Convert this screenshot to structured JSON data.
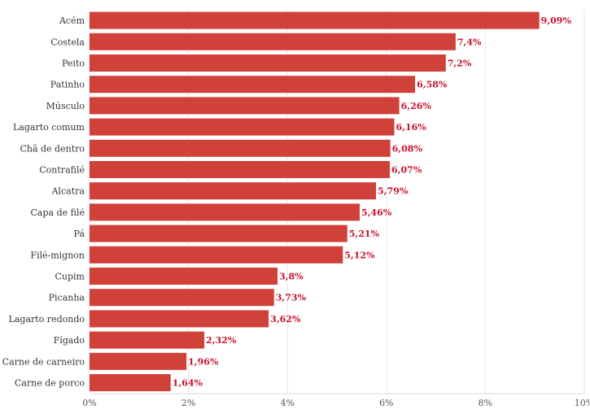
{
  "chart_data": {
    "type": "bar",
    "orientation": "horizontal",
    "categories": [
      "Acém",
      "Costela",
      "Peito",
      "Patinho",
      "Músculo",
      "Lagarto comum",
      "Chã de dentro",
      "Contrafilé",
      "Alcatra",
      "Capa de filé",
      "Pá",
      "Filé-mignon",
      "Cupim",
      "Picanha",
      "Lagarto redondo",
      "Fígado",
      "Carne de carneiro",
      "Carne de porco"
    ],
    "values": [
      9.09,
      7.4,
      7.2,
      6.58,
      6.26,
      6.16,
      6.08,
      6.07,
      5.79,
      5.46,
      5.21,
      5.12,
      3.8,
      3.73,
      3.62,
      2.32,
      1.96,
      1.64
    ],
    "value_labels": [
      "9,09%",
      "7,4%",
      "7,2%",
      "6,58%",
      "6,26%",
      "6,16%",
      "6,08%",
      "6,07%",
      "5,79%",
      "5,46%",
      "5,21%",
      "5,12%",
      "3,8%",
      "3,73%",
      "3,62%",
      "2,32%",
      "1,96%",
      "1,64%"
    ],
    "x_ticks": [
      0,
      2,
      4,
      6,
      8,
      10
    ],
    "x_tick_labels": [
      "0%",
      "2%",
      "4%",
      "6%",
      "8%",
      "10%"
    ],
    "xlim": [
      0,
      10
    ],
    "title": "",
    "xlabel": "",
    "ylabel": "",
    "grid": "vertical",
    "legend": "none",
    "bar_color": "#d0413a",
    "value_label_color": "#c8102e"
  }
}
